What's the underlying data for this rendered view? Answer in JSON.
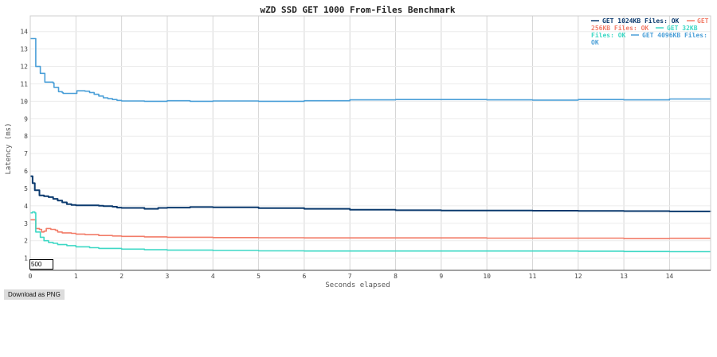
{
  "chart_data": {
    "type": "line",
    "title": "wZD SSD GET 1000 From-Files Benchmark",
    "xlabel": "Seconds elapsed",
    "ylabel": "Latency (ms)",
    "xlim": [
      0,
      14.9
    ],
    "ylim": [
      0.3,
      14.9
    ],
    "xticks": [
      0,
      1,
      2,
      3,
      4,
      5,
      6,
      7,
      8,
      9,
      10,
      11,
      12,
      13,
      14
    ],
    "yticks": [
      1,
      2,
      3,
      4,
      5,
      6,
      7,
      8,
      9,
      10,
      11,
      12,
      13,
      14
    ],
    "grid": true,
    "legend_position": "top-right",
    "series": [
      {
        "name": "GET 1024KB Files: OK",
        "color": "#0b3a6e",
        "points": [
          [
            0,
            5.7
          ],
          [
            0.05,
            5.3
          ],
          [
            0.1,
            4.9
          ],
          [
            0.2,
            4.6
          ],
          [
            0.3,
            4.55
          ],
          [
            0.4,
            4.5
          ],
          [
            0.5,
            4.4
          ],
          [
            0.6,
            4.3
          ],
          [
            0.7,
            4.2
          ],
          [
            0.8,
            4.1
          ],
          [
            0.9,
            4.05
          ],
          [
            1.0,
            4.03
          ],
          [
            1.3,
            4.03
          ],
          [
            1.5,
            4.01
          ],
          [
            1.6,
            3.98
          ],
          [
            1.8,
            3.95
          ],
          [
            1.9,
            3.9
          ],
          [
            2.0,
            3.88
          ],
          [
            2.5,
            3.83
          ],
          [
            2.8,
            3.88
          ],
          [
            3.0,
            3.9
          ],
          [
            3.5,
            3.93
          ],
          [
            4.0,
            3.92
          ],
          [
            5.0,
            3.87
          ],
          [
            6.0,
            3.83
          ],
          [
            7.0,
            3.78
          ],
          [
            8.0,
            3.75
          ],
          [
            9.0,
            3.73
          ],
          [
            10.0,
            3.73
          ],
          [
            11.0,
            3.72
          ],
          [
            12.0,
            3.71
          ],
          [
            13.0,
            3.7
          ],
          [
            14.0,
            3.68
          ],
          [
            14.9,
            3.67
          ]
        ]
      },
      {
        "name": "GET 256KB Files: OK",
        "color": "#f27c68",
        "points": [
          [
            0,
            3.2
          ],
          [
            0.1,
            3.2
          ],
          [
            0.12,
            2.7
          ],
          [
            0.2,
            2.65
          ],
          [
            0.25,
            2.5
          ],
          [
            0.3,
            2.55
          ],
          [
            0.35,
            2.7
          ],
          [
            0.45,
            2.65
          ],
          [
            0.55,
            2.6
          ],
          [
            0.6,
            2.5
          ],
          [
            0.7,
            2.45
          ],
          [
            0.9,
            2.42
          ],
          [
            1.0,
            2.38
          ],
          [
            1.2,
            2.35
          ],
          [
            1.5,
            2.3
          ],
          [
            1.8,
            2.27
          ],
          [
            2.0,
            2.25
          ],
          [
            2.5,
            2.22
          ],
          [
            3.0,
            2.2
          ],
          [
            4.0,
            2.18
          ],
          [
            5.0,
            2.17
          ],
          [
            6.0,
            2.16
          ],
          [
            8.0,
            2.16
          ],
          [
            10.0,
            2.15
          ],
          [
            12.0,
            2.15
          ],
          [
            13.0,
            2.13
          ],
          [
            14.0,
            2.14
          ],
          [
            14.9,
            2.14
          ]
        ]
      },
      {
        "name": "GET 32KB Files: OK",
        "color": "#3ed8c5",
        "points": [
          [
            0,
            3.6
          ],
          [
            0.05,
            3.65
          ],
          [
            0.1,
            3.6
          ],
          [
            0.12,
            2.5
          ],
          [
            0.2,
            2.5
          ],
          [
            0.22,
            2.2
          ],
          [
            0.3,
            2.0
          ],
          [
            0.4,
            1.9
          ],
          [
            0.5,
            1.85
          ],
          [
            0.6,
            1.78
          ],
          [
            0.8,
            1.72
          ],
          [
            1.0,
            1.65
          ],
          [
            1.3,
            1.6
          ],
          [
            1.5,
            1.56
          ],
          [
            2.0,
            1.52
          ],
          [
            2.5,
            1.48
          ],
          [
            3.0,
            1.46
          ],
          [
            4.0,
            1.44
          ],
          [
            5.0,
            1.42
          ],
          [
            6.0,
            1.41
          ],
          [
            7.0,
            1.41
          ],
          [
            8.0,
            1.41
          ],
          [
            10.0,
            1.41
          ],
          [
            12.0,
            1.4
          ],
          [
            13.0,
            1.38
          ],
          [
            14.0,
            1.37
          ],
          [
            14.9,
            1.37
          ]
        ]
      },
      {
        "name": "GET 4096KB Files: OK",
        "color": "#4a9fd8",
        "points": [
          [
            0,
            13.6
          ],
          [
            0.1,
            13.6
          ],
          [
            0.12,
            12.0
          ],
          [
            0.2,
            12.0
          ],
          [
            0.22,
            11.6
          ],
          [
            0.3,
            11.6
          ],
          [
            0.32,
            11.1
          ],
          [
            0.5,
            11.05
          ],
          [
            0.52,
            10.8
          ],
          [
            0.6,
            10.8
          ],
          [
            0.62,
            10.55
          ],
          [
            0.7,
            10.5
          ],
          [
            0.72,
            10.45
          ],
          [
            0.9,
            10.45
          ],
          [
            1.0,
            10.45
          ],
          [
            1.02,
            10.6
          ],
          [
            1.2,
            10.58
          ],
          [
            1.3,
            10.5
          ],
          [
            1.4,
            10.4
          ],
          [
            1.5,
            10.3
          ],
          [
            1.6,
            10.2
          ],
          [
            1.7,
            10.15
          ],
          [
            1.8,
            10.1
          ],
          [
            1.9,
            10.05
          ],
          [
            2.0,
            10.02
          ],
          [
            2.5,
            10.0
          ],
          [
            3.0,
            10.03
          ],
          [
            3.5,
            10.0
          ],
          [
            4.0,
            10.02
          ],
          [
            5.0,
            10.0
          ],
          [
            6.0,
            10.03
          ],
          [
            7.0,
            10.08
          ],
          [
            8.0,
            10.1
          ],
          [
            9.0,
            10.1
          ],
          [
            10.0,
            10.08
          ],
          [
            11.0,
            10.07
          ],
          [
            12.0,
            10.1
          ],
          [
            13.0,
            10.08
          ],
          [
            14.0,
            10.13
          ],
          [
            14.9,
            10.12
          ]
        ]
      }
    ]
  },
  "legend": {
    "line1_a": "GET 1024KB Files: OK",
    "line1_b": "GET",
    "line2_a": "256KB Files: OK",
    "line2_b": "GET 32KB",
    "line3_a": "Files: OK",
    "line3_b": "GET 4096KB Files:",
    "line4": "OK"
  },
  "hover_label": "500",
  "download_label": "Download as PNG"
}
